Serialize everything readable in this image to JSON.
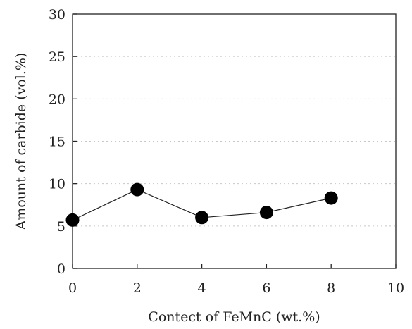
{
  "chart_data": {
    "type": "line",
    "xlabel": "Contect of FeMnC (wt.%)",
    "ylabel": "Amount of carbide (vol.%)",
    "xlim": [
      0,
      10
    ],
    "ylim": [
      0,
      30
    ],
    "x_ticks": [
      "0",
      "2",
      "4",
      "6",
      "8",
      "10"
    ],
    "y_ticks": [
      "0",
      "5",
      "10",
      "15",
      "20",
      "25",
      "30"
    ],
    "grid": true,
    "series": [
      {
        "x": [
          0,
          2,
          4,
          6,
          8
        ],
        "values": [
          5.7,
          9.3,
          6.0,
          6.6,
          8.3
        ]
      }
    ],
    "colors": {
      "marker": "#000000",
      "line": "#222222",
      "grid": "#c8c8c8"
    }
  }
}
